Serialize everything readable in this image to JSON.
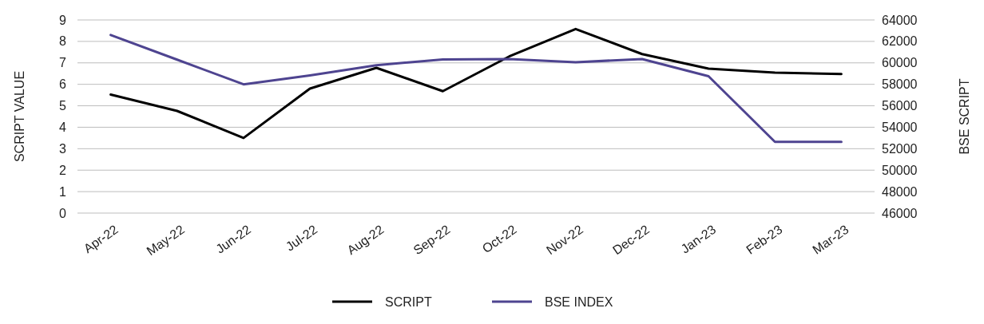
{
  "chart_data": {
    "type": "line",
    "ylabel": "SCRIPT VALUE",
    "y2label": "BSE SCRIPT",
    "categories": [
      "Apr-22",
      "May-22",
      "Jun-22",
      "Jul-22",
      "Aug-22",
      "Sep-22",
      "Oct-22",
      "Nov-22",
      "Dec-22",
      "Jan-23",
      "Feb-23",
      "Mar-23"
    ],
    "series": [
      {
        "name": "SCRIPT",
        "color": "#000000",
        "values": [
          5.52,
          4.76,
          3.5,
          5.8,
          6.77,
          5.68,
          7.3,
          8.58,
          7.41,
          6.73,
          6.55,
          6.48
        ]
      },
      {
        "name": "BSE INDEX",
        "color": "#4e4490",
        "axis": "y2",
        "values": [
          62600,
          60300,
          58000,
          58830,
          59780,
          60320,
          60360,
          60060,
          60360,
          58760,
          52640,
          52640
        ]
      }
    ],
    "ylim": [
      0,
      9
    ],
    "yticks": [
      0,
      1,
      2,
      3,
      4,
      5,
      6,
      7,
      8,
      9
    ],
    "y2lim": [
      46000,
      64000
    ],
    "y2ticks": [
      46000,
      48000,
      50000,
      52000,
      54000,
      56000,
      58000,
      60000,
      62000,
      64000
    ],
    "grid": "y",
    "legend": "bottom",
    "marker": "none",
    "line_style": "solid"
  }
}
